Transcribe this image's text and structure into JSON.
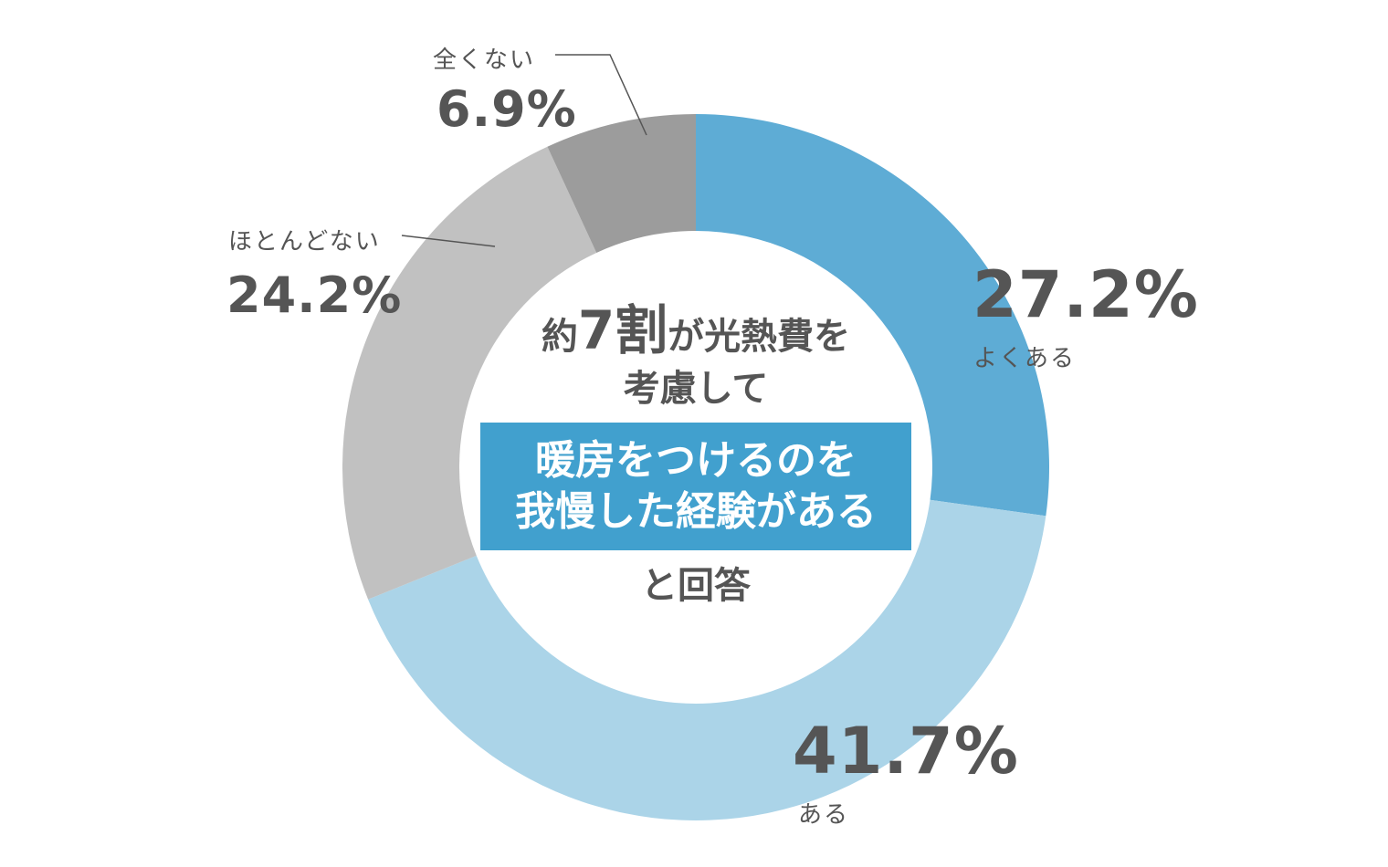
{
  "chart_data": {
    "type": "pie",
    "variant": "donut",
    "slices": [
      {
        "label": "よくある",
        "value": 27.2,
        "text": "27.2%",
        "color": "#5eacd5"
      },
      {
        "label": "ある",
        "value": 41.7,
        "text": "41.7%",
        "color": "#abd4e8"
      },
      {
        "label": "ほとんどない",
        "value": 24.2,
        "text": "24.2%",
        "color": "#c1c1c1"
      },
      {
        "label": "全くない",
        "value": 6.9,
        "text": "6.9%",
        "color": "#9c9c9c"
      }
    ],
    "center": {
      "line1_pre": "約",
      "line1_big": "7割",
      "line1_post": "が光熱費を",
      "line2": "考慮して",
      "box_line1": "暖房をつけるのを",
      "box_line2": "我慢した経験がある",
      "line3": "と回答"
    }
  }
}
